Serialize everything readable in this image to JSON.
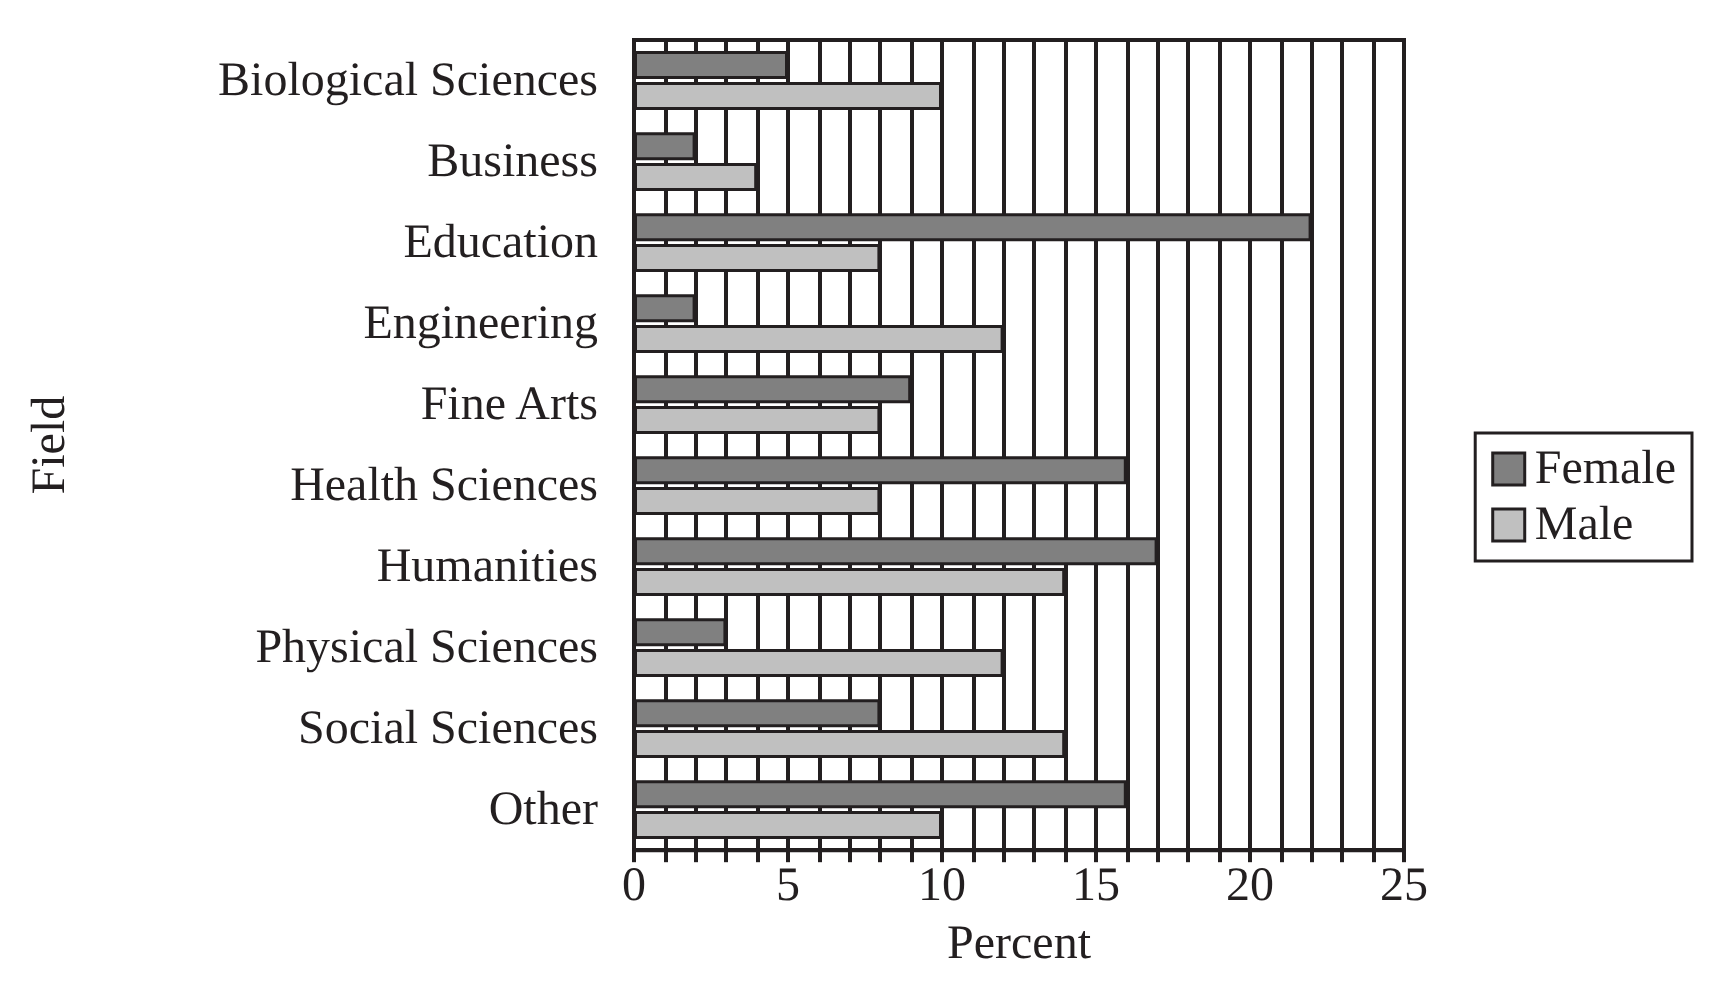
{
  "chart_data": {
    "type": "bar",
    "orientation": "horizontal",
    "xlabel": "Percent",
    "ylabel": "Field",
    "categories": [
      "Biological Sciences",
      "Business",
      "Education",
      "Engineering",
      "Fine Arts",
      "Health Sciences",
      "Humanities",
      "Physical Sciences",
      "Social Sciences",
      "Other"
    ],
    "series": [
      {
        "name": "Female",
        "color": "#808080",
        "values": [
          5,
          2,
          22,
          2,
          9,
          16,
          17,
          3,
          8,
          16
        ]
      },
      {
        "name": "Male",
        "color": "#c0c0c0",
        "values": [
          10,
          4,
          8,
          12,
          8,
          8,
          14,
          12,
          14,
          10
        ]
      }
    ],
    "xlim": [
      0,
      25
    ],
    "xticks": [
      0,
      {
        "value": 1,
        "label": null
      },
      {
        "value": 2,
        "label": null
      },
      {
        "value": 3,
        "label": null
      },
      {
        "value": 4,
        "label": null
      },
      5,
      {
        "value": 6,
        "label": null
      },
      {
        "value": 7,
        "label": null
      },
      {
        "value": 8,
        "label": null
      },
      {
        "value": 9,
        "label": null
      },
      10,
      {
        "value": 11,
        "label": null
      },
      {
        "value": 12,
        "label": null
      },
      {
        "value": 13,
        "label": null
      },
      {
        "value": 14,
        "label": null
      },
      15,
      {
        "value": 16,
        "label": null
      },
      {
        "value": 17,
        "label": null
      },
      {
        "value": 18,
        "label": null
      },
      {
        "value": 19,
        "label": null
      },
      20,
      {
        "value": 21,
        "label": null
      },
      {
        "value": 22,
        "label": null
      },
      {
        "value": 23,
        "label": null
      },
      {
        "value": 24,
        "label": null
      },
      25
    ],
    "grid": "x",
    "legend": "right"
  }
}
